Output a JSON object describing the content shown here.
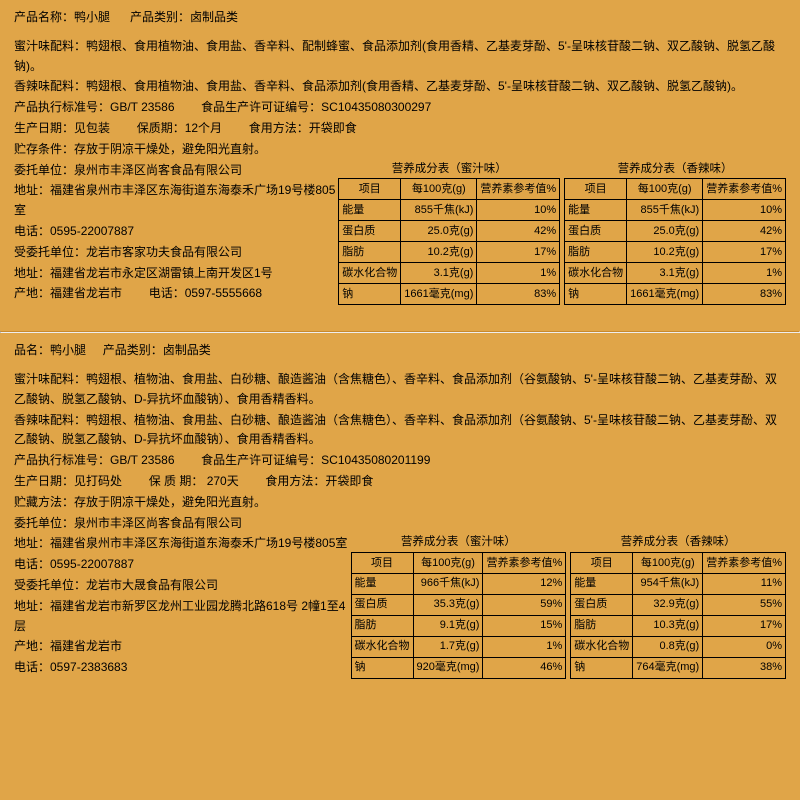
{
  "p1": {
    "line1_a": "产品名称：鸭小腿",
    "line1_b": "产品类别：卤制品类",
    "ing1": "蜜汁味配料：鸭翅根、食用植物油、食用盐、香辛料、配制蜂蜜、食品添加剂(食用香精、乙基麦芽酚、5'-呈味核苷酸二钠、双乙酸钠、脱氢乙酸钠)。",
    "ing2": "香辣味配料：鸭翅根、食用植物油、食用盐、香辛料、食品添加剂(食用香精、乙基麦芽酚、5'-呈味核苷酸二钠、双乙酸钠、脱氢乙酸钠)。",
    "std_a": "产品执行标准号：GB/T 23586",
    "std_b": "食品生产许可证编号：SC10435080300297",
    "date_a": "生产日期：见包装",
    "date_b": "保质期：12个月",
    "date_c": "食用方法：开袋即食",
    "store": "贮存条件：存放于阴凉干燥处，避免阳光直射。",
    "wt": "委托单位：泉州市丰泽区尚客食品有限公司",
    "addr1": "地址：福建省泉州市丰泽区东海街道东海泰禾广场19号楼805室",
    "tel1": "电话：0595-22007887",
    "sww": "受委托单位：龙岩市客家功夫食品有限公司",
    "addr2": "地址：福建省龙岩市永定区湖雷镇上南开发区1号",
    "origin_a": "产地：福建省龙岩市",
    "origin_b": "电话：0597-5555668",
    "t1cap": "营养成分表（蜜汁味）",
    "t2cap": "营养成分表（香辣味）",
    "th1": "项目",
    "th2": "每100克(g)",
    "th3": "营养素参考值%",
    "t1": [
      [
        "能量",
        "855千焦(kJ)",
        "10%"
      ],
      [
        "蛋白质",
        "25.0克(g)",
        "42%"
      ],
      [
        "脂肪",
        "10.2克(g)",
        "17%"
      ],
      [
        "碳水化合物",
        "3.1克(g)",
        "1%"
      ],
      [
        "钠",
        "1661毫克(mg)",
        "83%"
      ]
    ],
    "t2": [
      [
        "能量",
        "855千焦(kJ)",
        "10%"
      ],
      [
        "蛋白质",
        "25.0克(g)",
        "42%"
      ],
      [
        "脂肪",
        "10.2克(g)",
        "17%"
      ],
      [
        "碳水化合物",
        "3.1克(g)",
        "1%"
      ],
      [
        "钠",
        "1661毫克(mg)",
        "83%"
      ]
    ]
  },
  "p2": {
    "line1_a": "品名：鸭小腿",
    "line1_b": "产品类别：卤制品类",
    "ing1": "蜜汁味配料：鸭翅根、植物油、食用盐、白砂糖、酿造酱油（含焦糖色）、香辛料、食品添加剂（谷氨酸钠、5'-呈味核苷酸二钠、乙基麦芽酚、双乙酸钠、脱氢乙酸钠、D-异抗坏血酸钠）、食用香精香料。",
    "ing2": "香辣味配料：鸭翅根、植物油、食用盐、白砂糖、酿造酱油（含焦糖色）、香辛料、食品添加剂（谷氨酸钠、5'-呈味核苷酸二钠、乙基麦芽酚、双乙酸钠、脱氢乙酸钠、D-异抗坏血酸钠）、食用香精香料。",
    "std_a": "产品执行标准号：GB/T 23586",
    "std_b": "食品生产许可证编号：SC10435080201199",
    "date_a": "生产日期：见打码处",
    "date_b": "保 质 期： 270天",
    "date_c": "食用方法：开袋即食",
    "store": "贮藏方法：存放于阴凉干燥处，避免阳光直射。",
    "wt": "委托单位：泉州市丰泽区尚客食品有限公司",
    "addr1": "地址：福建省泉州市丰泽区东海街道东海泰禾广场19号楼805室",
    "tel1": "电话：0595-22007887",
    "sww": "受委托单位：龙岩市大晟食品有限公司",
    "addr2": "地址：福建省龙岩市新罗区龙州工业园龙腾北路618号 2幢1至4层",
    "origin": "产地：福建省龙岩市",
    "tel2": "电话：0597-2383683",
    "t1cap": "营养成分表（蜜汁味）",
    "t2cap": "营养成分表（香辣味）",
    "th1": "项目",
    "th2": "每100克(g)",
    "th3": "营养素参考值%",
    "t1": [
      [
        "能量",
        "966千焦(kJ)",
        "12%"
      ],
      [
        "蛋白质",
        "35.3克(g)",
        "59%"
      ],
      [
        "脂肪",
        "9.1克(g)",
        "15%"
      ],
      [
        "碳水化合物",
        "1.7克(g)",
        "1%"
      ],
      [
        "钠",
        "920毫克(mg)",
        "46%"
      ]
    ],
    "t2": [
      [
        "能量",
        "954千焦(kJ)",
        "11%"
      ],
      [
        "蛋白质",
        "32.9克(g)",
        "55%"
      ],
      [
        "脂肪",
        "10.3克(g)",
        "17%"
      ],
      [
        "碳水化合物",
        "0.8克(g)",
        "0%"
      ],
      [
        "钠",
        "764毫克(mg)",
        "38%"
      ]
    ]
  }
}
